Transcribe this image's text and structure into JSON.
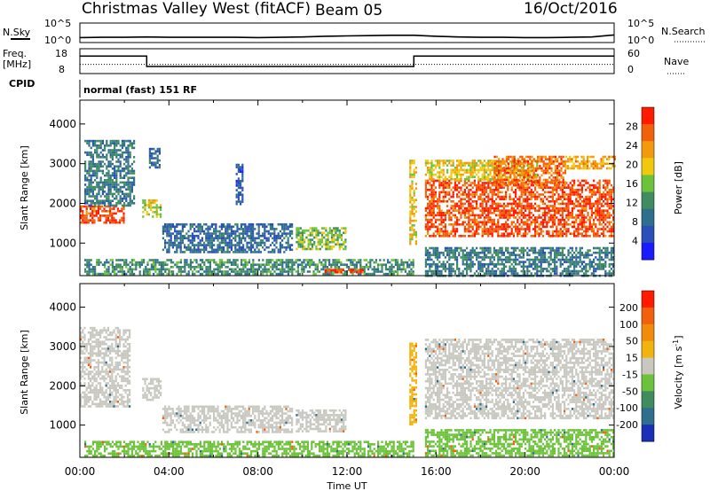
{
  "header": {
    "radar": "Christmas Valley West (fitACF)",
    "beam": "Beam 05",
    "date": "16/Oct/2016"
  },
  "side_labels": {
    "nsky": "N.Sky",
    "nsearch": "N.Search",
    "freq": "Freq.",
    "freq_unit": "[MHz]",
    "nave": "Nave",
    "cpid": "CPID",
    "cpid_value": "normal (fast) 151 RF",
    "nsky_ticks": [
      "10^5",
      "10^0"
    ],
    "nsearch_ticks": [
      "10^5",
      "10^0"
    ],
    "freq_ticks": [
      "18",
      "8"
    ],
    "nave_ticks": [
      "60",
      "0"
    ]
  },
  "chart_data": [
    {
      "type": "line",
      "panel": "noise",
      "x": [
        "00:00",
        "01:00",
        "02:00",
        "03:00",
        "04:00",
        "05:00",
        "06:00",
        "07:00",
        "08:00",
        "09:00",
        "10:00",
        "11:00",
        "12:00",
        "13:00",
        "14:00",
        "15:00",
        "16:00",
        "17:00",
        "18:00",
        "19:00",
        "20:00",
        "21:00",
        "22:00",
        "23:00",
        "24:00"
      ],
      "series": [
        {
          "values": [
            1.2,
            1.3,
            1.3,
            1.4,
            1.3,
            1.3,
            1.3,
            1.3,
            1.2,
            1.3,
            1.4,
            1.6,
            1.7,
            1.8,
            1.9,
            1.9,
            1.6,
            1.4,
            1.3,
            1.3,
            1.2,
            1.2,
            1.3,
            1.4,
            2.0
          ]
        }
      ],
      "ylim": [
        0,
        5
      ],
      "ytick_labels": [
        "10^0",
        "10^5"
      ]
    },
    {
      "type": "line",
      "panel": "freq_nave",
      "x": [
        "00:00",
        "03:00",
        "03:00",
        "15:00",
        "15:00",
        "24:00"
      ],
      "series": [
        {
          "values": [
            15.7,
            15.7,
            10.6,
            10.6,
            15.7,
            15.7
          ]
        },
        {
          "values": [
            22,
            22,
            22,
            22,
            22,
            22
          ]
        }
      ],
      "ylim": [
        8,
        18
      ],
      "ylim_right": [
        0,
        60
      ]
    },
    {
      "type": "heatmap",
      "panel": "power",
      "xlabel": "",
      "ylabel": "Slant Range [km]",
      "xlim": [
        0,
        24
      ],
      "ylim": [
        180,
        4600
      ],
      "yticks": [
        1000,
        2000,
        3000,
        4000
      ],
      "colorbar": {
        "label": "Power [dB]",
        "range": [
          0,
          32
        ],
        "ticks": [
          4,
          8,
          12,
          16,
          20,
          24,
          28
        ],
        "colors": [
          "#1b1bff",
          "#2a4fb8",
          "#2f6f8e",
          "#3f8c60",
          "#6cc23a",
          "#f2c80c",
          "#f29a0c",
          "#f2600c",
          "#ff1a00"
        ]
      },
      "regions": [
        {
          "t0": 0.0,
          "t1": 2.0,
          "r0": 1500,
          "r1": 1950,
          "level": 28
        },
        {
          "t0": 0.2,
          "t1": 2.4,
          "r0": 1950,
          "r1": 3600,
          "level": 10
        },
        {
          "t0": 2.8,
          "t1": 3.6,
          "r0": 1650,
          "r1": 2100,
          "level": 18
        },
        {
          "t0": 3.1,
          "t1": 3.6,
          "r0": 2900,
          "r1": 3400,
          "level": 8
        },
        {
          "t0": 7.0,
          "t1": 7.3,
          "r0": 2000,
          "r1": 3000,
          "level": 6
        },
        {
          "t0": 3.7,
          "t1": 9.5,
          "r0": 800,
          "r1": 1500,
          "level": 8
        },
        {
          "t0": 9.7,
          "t1": 11.9,
          "r0": 850,
          "r1": 1400,
          "level": 16
        },
        {
          "t0": 0.2,
          "t1": 15.0,
          "r0": 200,
          "r1": 600,
          "level": 12
        },
        {
          "t0": 11.0,
          "t1": 12.8,
          "r0": 250,
          "r1": 350,
          "level": 28
        },
        {
          "t0": 14.8,
          "t1": 15.1,
          "r0": 1000,
          "r1": 3100,
          "level": 20
        },
        {
          "t0": 15.5,
          "t1": 24.0,
          "r0": 1200,
          "r1": 2600,
          "level": 28
        },
        {
          "t0": 15.5,
          "t1": 20.5,
          "r0": 2600,
          "r1": 3100,
          "level": 20
        },
        {
          "t0": 18.6,
          "t1": 21.8,
          "r0": 2500,
          "r1": 3200,
          "level": 26
        },
        {
          "t0": 21.8,
          "t1": 24.0,
          "r0": 2900,
          "r1": 3200,
          "level": 22
        },
        {
          "t0": 15.5,
          "t1": 24.0,
          "r0": 200,
          "r1": 900,
          "level": 10
        }
      ]
    },
    {
      "type": "heatmap",
      "panel": "velocity",
      "xlabel": "Time UT",
      "ylabel": "Slant Range [km]",
      "xlim": [
        0,
        24
      ],
      "ylim": [
        180,
        4600
      ],
      "xtick_labels": [
        "00:00",
        "04:00",
        "08:00",
        "12:00",
        "16:00",
        "20:00",
        "00:00"
      ],
      "yticks": [
        1000,
        2000,
        3000,
        4000
      ],
      "colorbar": {
        "label": "Velocity [m s-1]",
        "range": [
          -250,
          250
        ],
        "ticks": [
          200,
          100,
          50,
          15,
          -15,
          -50,
          -100,
          -200
        ],
        "colors": [
          "#1a2fb8",
          "#2f6f8e",
          "#3f8c60",
          "#6cc23a",
          "#c8c8c0",
          "#f2b30c",
          "#f28a0c",
          "#f2600c",
          "#ff1a00"
        ]
      },
      "regions": [
        {
          "t0": 0.0,
          "t1": 2.2,
          "r0": 1500,
          "r1": 3500,
          "level": 0
        },
        {
          "t0": 2.8,
          "t1": 3.6,
          "r0": 1650,
          "r1": 2200,
          "level": 0
        },
        {
          "t0": 3.7,
          "t1": 9.5,
          "r0": 800,
          "r1": 1500,
          "level": 0
        },
        {
          "t0": 9.7,
          "t1": 11.9,
          "r0": 850,
          "r1": 1400,
          "level": 0
        },
        {
          "t0": 0.2,
          "t1": 15.0,
          "r0": 200,
          "r1": 600,
          "level": -40
        },
        {
          "t0": 14.8,
          "t1": 15.1,
          "r0": 1000,
          "r1": 3100,
          "level": 40
        },
        {
          "t0": 15.5,
          "t1": 24.0,
          "r0": 1200,
          "r1": 3200,
          "level": 0
        },
        {
          "t0": 15.5,
          "t1": 24.0,
          "r0": 200,
          "r1": 900,
          "level": -40
        }
      ]
    }
  ]
}
